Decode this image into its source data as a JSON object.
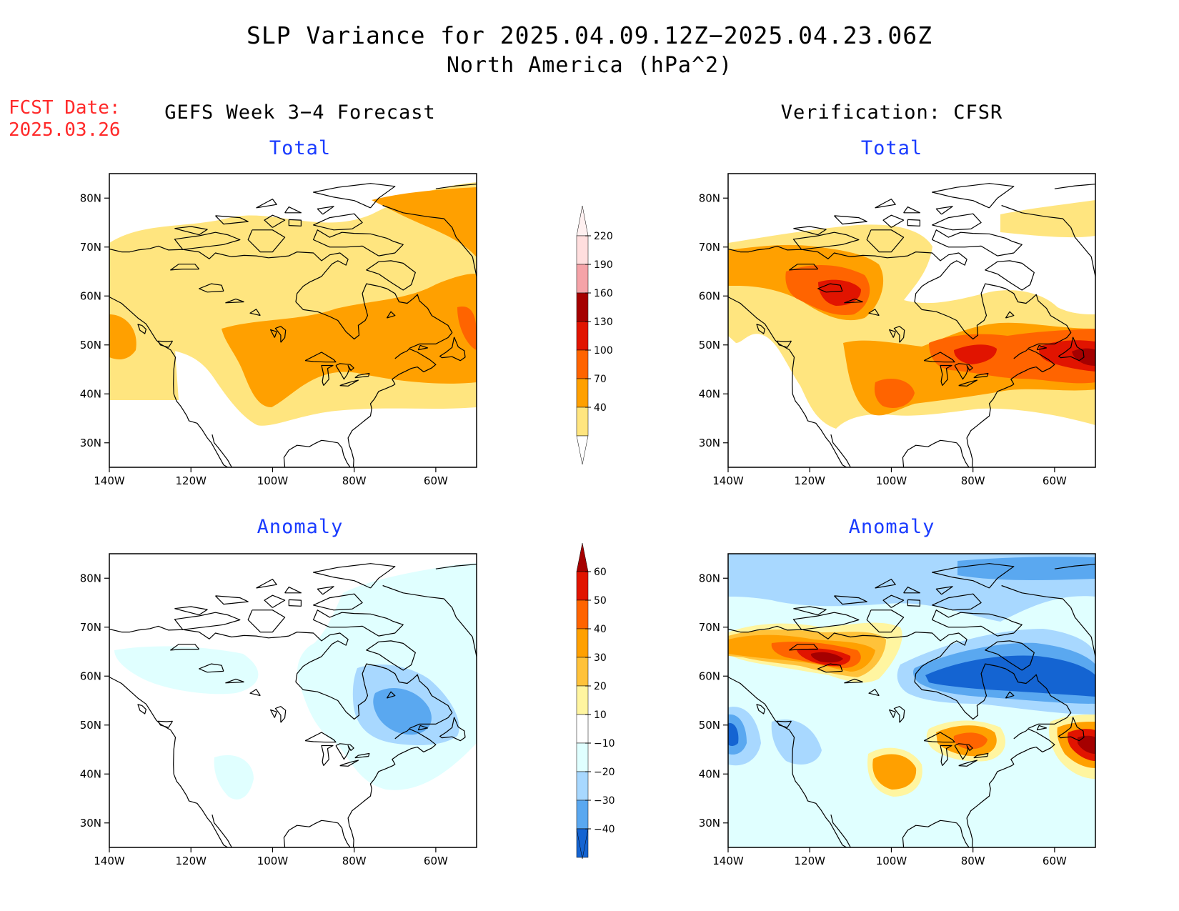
{
  "title": {
    "line1": "SLP Variance for 2025.04.09.12Z−2025.04.23.06Z",
    "line2": "North America (hPa^2)"
  },
  "fcst_date": {
    "label": "FCST Date:",
    "value": "2025.03.26"
  },
  "columns": {
    "forecast": "GEFS Week 3−4 Forecast",
    "verification": "Verification: CFSR"
  },
  "panels": {
    "total_label": "Total",
    "anomaly_label": "Anomaly"
  },
  "axes": {
    "lon_ticks": [
      "140W",
      "120W",
      "100W",
      "80W",
      "60W"
    ],
    "lat_ticks": [
      "80N",
      "70N",
      "60N",
      "50N",
      "40N",
      "30N"
    ],
    "lon_range": [
      -140,
      -50
    ],
    "lat_range": [
      25,
      85
    ]
  },
  "colorbar_total": {
    "levels": [
      "40",
      "70",
      "100",
      "130",
      "160",
      "190",
      "220"
    ],
    "colors": [
      "#ffe57f",
      "#ffa000",
      "#ff6400",
      "#e11400",
      "#a50000",
      "#f5a3a8",
      "#ffdede"
    ]
  },
  "colorbar_anomaly": {
    "levels": [
      "60",
      "50",
      "40",
      "30",
      "20",
      "10",
      "−10",
      "−20",
      "−30",
      "−40"
    ],
    "colors": [
      "#a50000",
      "#e11400",
      "#ff6400",
      "#ffa000",
      "#ffc23a",
      "#fff5a0",
      "#ffffff",
      "#e0ffff",
      "#a8d8ff",
      "#5aa8f0",
      "#1464d2"
    ]
  }
}
